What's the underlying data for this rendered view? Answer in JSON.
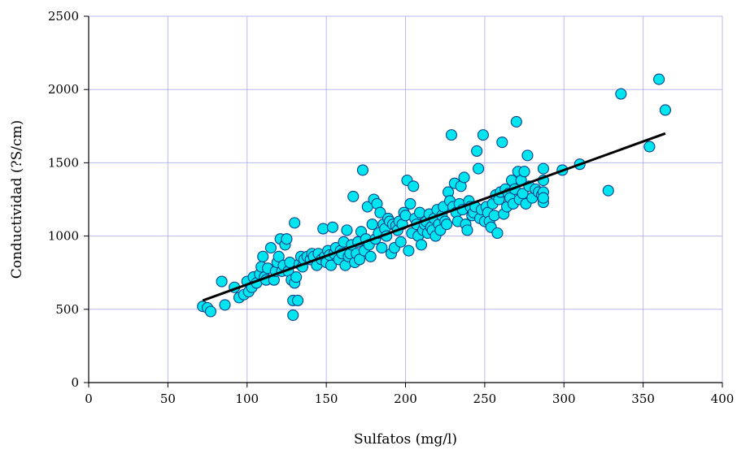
{
  "chart_data": {
    "type": "scatter",
    "title": "",
    "xlabel": "Sulfatos (mg/l)",
    "ylabel": "Conductividad (?S/cm)",
    "xlim": [
      0,
      400
    ],
    "ylim": [
      0,
      2500
    ],
    "x_ticks": [
      "0",
      "50",
      "100",
      "150",
      "200",
      "250",
      "300",
      "350",
      "400"
    ],
    "y_ticks": [
      "0",
      "500",
      "1000",
      "1500",
      "2000",
      "2500"
    ],
    "grid": true,
    "legend": "none",
    "colors": {
      "marker_fill": "#00e5ee",
      "marker_edge": "#0a3f8a",
      "trendline": "#000000",
      "grid": "#b8b8f0",
      "axis": "#000000"
    },
    "series": [
      {
        "x": [
          72,
          75,
          77,
          84,
          86,
          92,
          95,
          98,
          100,
          101,
          103,
          104,
          106,
          108,
          109,
          110,
          111,
          112,
          113,
          115,
          117,
          118,
          119,
          120,
          121,
          122,
          123,
          124,
          125,
          126,
          127,
          128,
          129,
          129,
          130,
          130,
          131,
          132,
          133,
          134,
          135,
          136,
          138,
          140,
          141,
          142,
          144,
          145,
          147,
          148,
          149,
          150,
          151,
          152,
          153,
          154,
          155,
          156,
          158,
          159,
          160,
          161,
          162,
          163,
          164,
          165,
          166,
          167,
          168,
          169,
          170,
          171,
          172,
          173,
          174,
          175,
          176,
          177,
          178,
          179,
          180,
          181,
          182,
          183,
          184,
          185,
          186,
          187,
          188,
          189,
          190,
          191,
          192,
          193,
          194,
          195,
          196,
          197,
          198,
          199,
          200,
          201,
          202,
          203,
          204,
          205,
          206,
          207,
          208,
          209,
          210,
          211,
          212,
          213,
          214,
          215,
          216,
          217,
          218,
          219,
          220,
          221,
          222,
          223,
          224,
          225,
          226,
          227,
          228,
          229,
          230,
          231,
          232,
          233,
          234,
          235,
          236,
          237,
          238,
          239,
          240,
          241,
          242,
          243,
          244,
          245,
          246,
          247,
          248,
          249,
          250,
          251,
          252,
          253,
          254,
          255,
          256,
          257,
          258,
          259,
          260,
          261,
          262,
          263,
          264,
          265,
          266,
          267,
          268,
          269,
          270,
          271,
          272,
          273,
          274,
          275,
          276,
          277,
          278,
          280,
          282,
          284,
          286,
          287,
          287,
          287,
          287,
          287,
          299,
          310,
          328,
          336,
          354,
          360,
          364
        ],
        "y": [
          520,
          510,
          485,
          690,
          530,
          650,
          580,
          600,
          690,
          620,
          650,
          720,
          680,
          740,
          790,
          860,
          720,
          700,
          780,
          920,
          700,
          760,
          820,
          860,
          980,
          760,
          800,
          940,
          980,
          760,
          820,
          700,
          560,
          460,
          680,
          1090,
          720,
          560,
          810,
          860,
          790,
          840,
          860,
          840,
          880,
          860,
          800,
          880,
          840,
          1050,
          860,
          820,
          900,
          870,
          800,
          1060,
          880,
          920,
          840,
          900,
          880,
          960,
          800,
          1040,
          860,
          880,
          940,
          1270,
          820,
          880,
          960,
          840,
          1030,
          1450,
          900,
          980,
          1200,
          940,
          860,
          1080,
          1250,
          980,
          1220,
          1020,
          1160,
          920,
          1080,
          1050,
          1000,
          1120,
          1100,
          880,
          1080,
          920,
          1070,
          1040,
          1100,
          960,
          1080,
          1160,
          1140,
          1380,
          900,
          1220,
          1020,
          1340,
          1120,
          1080,
          1000,
          1160,
          940,
          1040,
          1080,
          1100,
          1020,
          1150,
          1060,
          1040,
          1120,
          1000,
          1180,
          1080,
          1040,
          1140,
          1200,
          1100,
          1080,
          1300,
          1240,
          1690,
          1200,
          1360,
          1160,
          1100,
          1220,
          1340,
          1180,
          1400,
          1080,
          1040,
          1240,
          1200,
          1140,
          1160,
          1200,
          1580,
          1460,
          1120,
          1180,
          1690,
          1100,
          1200,
          1160,
          1100,
          1060,
          1220,
          1140,
          1280,
          1020,
          1250,
          1300,
          1640,
          1150,
          1320,
          1200,
          1290,
          1260,
          1380,
          1220,
          1320,
          1780,
          1440,
          1250,
          1380,
          1290,
          1440,
          1220,
          1550,
          1340,
          1260,
          1320,
          1300,
          1280,
          1230,
          1460,
          1380,
          1300,
          1260,
          1450,
          1490,
          1310,
          1970,
          1610,
          2070,
          1860
        ],
        "marker": "circle"
      }
    ],
    "trendline": {
      "type": "linear",
      "x": [
        72,
        364
      ],
      "y": [
        560,
        1700
      ]
    }
  }
}
